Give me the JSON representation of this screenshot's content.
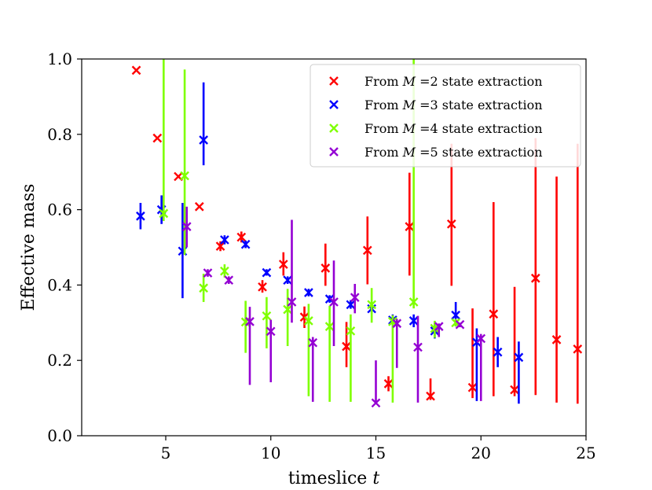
{
  "chart_data": {
    "type": "scatter",
    "title": "",
    "xlabel_text": "timeslice",
    "xlabel_var": "t",
    "ylabel": "Effective mass",
    "xlim": [
      1,
      25
    ],
    "ylim": [
      0.0,
      1.0
    ],
    "xticks": [
      5,
      10,
      15,
      20,
      25
    ],
    "yticks": [
      0.0,
      0.2,
      0.4,
      0.6,
      0.8,
      1.0
    ],
    "xtick_labels": [
      "5",
      "10",
      "15",
      "20",
      "25"
    ],
    "ytick_labels": [
      "0.0",
      "0.2",
      "0.4",
      "0.6",
      "0.8",
      "1.0"
    ],
    "grid": false,
    "legend_position": "top-right",
    "series": [
      {
        "legend_prefix": "From",
        "legend_var": "M",
        "legend_suffix": "=2 state extraction",
        "color": "#ff0000",
        "marker": "x",
        "x_offset": -0.1,
        "points": [
          {
            "t": 3.7,
            "m": 0.97,
            "lo": null,
            "hi": null
          },
          {
            "t": 4.7,
            "m": 0.79,
            "lo": null,
            "hi": null
          },
          {
            "t": 5.7,
            "m": 0.688,
            "lo": null,
            "hi": null
          },
          {
            "t": 6.7,
            "m": 0.608,
            "lo": null,
            "hi": null
          },
          {
            "t": 7.7,
            "m": 0.503,
            "lo": 0.49,
            "hi": 0.516
          },
          {
            "t": 8.7,
            "m": 0.527,
            "lo": 0.513,
            "hi": 0.542
          },
          {
            "t": 9.7,
            "m": 0.395,
            "lo": 0.38,
            "hi": 0.413
          },
          {
            "t": 10.7,
            "m": 0.455,
            "lo": 0.425,
            "hi": 0.487
          },
          {
            "t": 11.7,
            "m": 0.315,
            "lo": 0.286,
            "hi": 0.343
          },
          {
            "t": 12.7,
            "m": 0.445,
            "lo": 0.398,
            "hi": 0.51
          },
          {
            "t": 13.7,
            "m": 0.237,
            "lo": 0.182,
            "hi": 0.302
          },
          {
            "t": 14.7,
            "m": 0.492,
            "lo": 0.402,
            "hi": 0.582
          },
          {
            "t": 15.7,
            "m": 0.138,
            "lo": 0.118,
            "hi": 0.158
          },
          {
            "t": 16.7,
            "m": 0.555,
            "lo": 0.425,
            "hi": 0.698
          },
          {
            "t": 17.7,
            "m": 0.105,
            "lo": 0.095,
            "hi": 0.152
          },
          {
            "t": 18.7,
            "m": 0.562,
            "lo": 0.398,
            "hi": 0.775
          },
          {
            "t": 19.7,
            "m": 0.128,
            "lo": 0.1,
            "hi": 0.338
          },
          {
            "t": 20.7,
            "m": 0.323,
            "lo": 0.105,
            "hi": 0.62
          },
          {
            "t": 21.7,
            "m": 0.122,
            "lo": 0.105,
            "hi": 0.395
          },
          {
            "t": 22.7,
            "m": 0.418,
            "lo": 0.108,
            "hi": 0.79
          },
          {
            "t": 23.7,
            "m": 0.255,
            "lo": 0.088,
            "hi": 0.688
          },
          {
            "t": 24.7,
            "m": 0.23,
            "lo": 0.085,
            "hi": 0.775
          }
        ]
      },
      {
        "legend_prefix": "From",
        "legend_var": "M",
        "legend_suffix": "=3 state extraction",
        "color": "#0000ff",
        "marker": "x",
        "x_offset": 0.0,
        "points": [
          {
            "t": 3.8,
            "m": 0.583,
            "lo": 0.548,
            "hi": 0.618
          },
          {
            "t": 4.8,
            "m": 0.6,
            "lo": 0.562,
            "hi": 0.638
          },
          {
            "t": 5.8,
            "m": 0.49,
            "lo": 0.365,
            "hi": 0.618
          },
          {
            "t": 6.8,
            "m": 0.785,
            "lo": 0.718,
            "hi": 0.938
          },
          {
            "t": 7.8,
            "m": 0.52,
            "lo": 0.508,
            "hi": 0.532
          },
          {
            "t": 8.8,
            "m": 0.508,
            "lo": 0.498,
            "hi": 0.518
          },
          {
            "t": 9.8,
            "m": 0.433,
            "lo": 0.425,
            "hi": 0.442
          },
          {
            "t": 10.8,
            "m": 0.413,
            "lo": 0.403,
            "hi": 0.423
          },
          {
            "t": 11.8,
            "m": 0.38,
            "lo": 0.37,
            "hi": 0.39
          },
          {
            "t": 12.8,
            "m": 0.363,
            "lo": 0.353,
            "hi": 0.373
          },
          {
            "t": 13.8,
            "m": 0.348,
            "lo": 0.337,
            "hi": 0.36
          },
          {
            "t": 14.8,
            "m": 0.337,
            "lo": 0.325,
            "hi": 0.35
          },
          {
            "t": 15.8,
            "m": 0.307,
            "lo": 0.292,
            "hi": 0.322
          },
          {
            "t": 16.8,
            "m": 0.305,
            "lo": 0.288,
            "hi": 0.322
          },
          {
            "t": 17.8,
            "m": 0.278,
            "lo": 0.258,
            "hi": 0.298
          },
          {
            "t": 18.8,
            "m": 0.32,
            "lo": 0.29,
            "hi": 0.355
          },
          {
            "t": 19.8,
            "m": 0.248,
            "lo": 0.092,
            "hi": 0.285
          },
          {
            "t": 20.8,
            "m": 0.222,
            "lo": 0.182,
            "hi": 0.262
          },
          {
            "t": 21.8,
            "m": 0.208,
            "lo": 0.085,
            "hi": 0.25
          }
        ]
      },
      {
        "legend_prefix": "From",
        "legend_var": "M",
        "legend_suffix": "=4 state extraction",
        "color": "#7fff00",
        "marker": "x",
        "x_offset": 0.0,
        "points": [
          {
            "t": 4.9,
            "m": 0.59,
            "lo": 0.57,
            "hi": 1.0
          },
          {
            "t": 5.9,
            "m": 0.69,
            "lo": 0.48,
            "hi": 0.972
          },
          {
            "t": 6.8,
            "m": 0.392,
            "lo": 0.355,
            "hi": 0.43
          },
          {
            "t": 7.8,
            "m": 0.437,
            "lo": 0.42,
            "hi": 0.455
          },
          {
            "t": 8.8,
            "m": 0.302,
            "lo": 0.22,
            "hi": 0.358
          },
          {
            "t": 9.8,
            "m": 0.318,
            "lo": 0.232,
            "hi": 0.368
          },
          {
            "t": 10.8,
            "m": 0.335,
            "lo": 0.238,
            "hi": 0.39
          },
          {
            "t": 11.8,
            "m": 0.305,
            "lo": 0.105,
            "hi": 0.35
          },
          {
            "t": 12.8,
            "m": 0.29,
            "lo": 0.09,
            "hi": 0.345
          },
          {
            "t": 13.8,
            "m": 0.278,
            "lo": 0.09,
            "hi": 0.322
          },
          {
            "t": 14.8,
            "m": 0.348,
            "lo": 0.3,
            "hi": 0.392
          },
          {
            "t": 15.8,
            "m": 0.303,
            "lo": 0.088,
            "hi": 0.32
          },
          {
            "t": 16.8,
            "m": 0.355,
            "lo": 0.338,
            "hi": 1.0
          },
          {
            "t": 17.8,
            "m": 0.285,
            "lo": 0.26,
            "hi": 0.305
          },
          {
            "t": 18.8,
            "m": 0.3,
            "lo": 0.29,
            "hi": 0.31
          }
        ]
      },
      {
        "legend_prefix": "From",
        "legend_var": "M",
        "legend_suffix": "=5 state extraction",
        "color": "#9400d3",
        "marker": "x",
        "x_offset": 0.0,
        "points": [
          {
            "t": 6.0,
            "m": 0.555,
            "lo": 0.5,
            "hi": 0.608
          },
          {
            "t": 7.0,
            "m": 0.432,
            "lo": 0.422,
            "hi": 0.442
          },
          {
            "t": 8.0,
            "m": 0.413,
            "lo": 0.403,
            "hi": 0.423
          },
          {
            "t": 9.0,
            "m": 0.303,
            "lo": 0.135,
            "hi": 0.342
          },
          {
            "t": 10.0,
            "m": 0.277,
            "lo": 0.142,
            "hi": 0.308
          },
          {
            "t": 11.0,
            "m": 0.355,
            "lo": 0.3,
            "hi": 0.573
          },
          {
            "t": 12.0,
            "m": 0.247,
            "lo": 0.09,
            "hi": 0.262
          },
          {
            "t": 13.0,
            "m": 0.355,
            "lo": 0.238,
            "hi": 0.465
          },
          {
            "t": 14.0,
            "m": 0.367,
            "lo": 0.325,
            "hi": 0.403
          },
          {
            "t": 15.0,
            "m": 0.087,
            "lo": 0.085,
            "hi": 0.2
          },
          {
            "t": 16.0,
            "m": 0.298,
            "lo": 0.18,
            "hi": 0.31
          },
          {
            "t": 17.0,
            "m": 0.235,
            "lo": 0.088,
            "hi": 0.318
          },
          {
            "t": 18.0,
            "m": 0.29,
            "lo": 0.262,
            "hi": 0.298
          },
          {
            "t": 19.0,
            "m": 0.295,
            "lo": 0.288,
            "hi": 0.3
          },
          {
            "t": 20.0,
            "m": 0.258,
            "lo": 0.092,
            "hi": 0.27
          }
        ]
      }
    ]
  }
}
